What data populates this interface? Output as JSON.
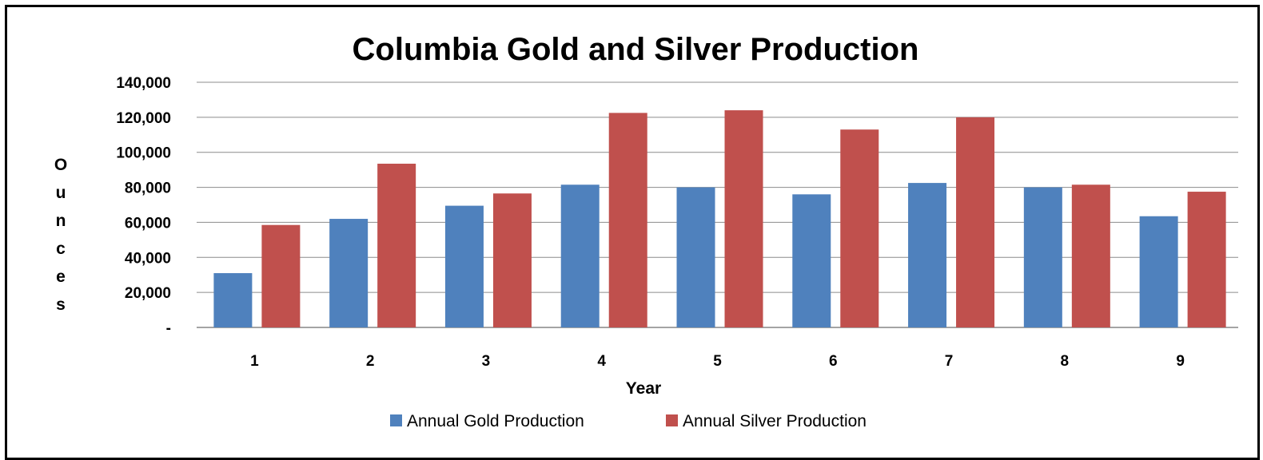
{
  "chart_data": {
    "type": "bar",
    "title": "Columbia Gold and Silver Production",
    "xlabel": "Year",
    "ylabel": "Ounces",
    "categories": [
      "1",
      "2",
      "3",
      "4",
      "5",
      "6",
      "7",
      "8",
      "9"
    ],
    "series": [
      {
        "name": "Annual Gold Production",
        "color": "#4F81BD",
        "values": [
          31000,
          62000,
          69500,
          81500,
          80000,
          76000,
          82500,
          80000,
          63500
        ]
      },
      {
        "name": "Annual Silver Production",
        "color": "#C0504D",
        "values": [
          58500,
          93500,
          76500,
          122500,
          124000,
          113000,
          120000,
          81500,
          77500
        ]
      }
    ],
    "ylim": [
      0,
      140000
    ],
    "yticks": [
      0,
      20000,
      40000,
      60000,
      80000,
      100000,
      120000,
      140000
    ],
    "ytick_labels": [
      "-",
      "20,000",
      "40,000",
      "60,000",
      "80,000",
      "100,000",
      "120,000",
      "140,000"
    ],
    "grid": true,
    "legend_position": "bottom"
  }
}
